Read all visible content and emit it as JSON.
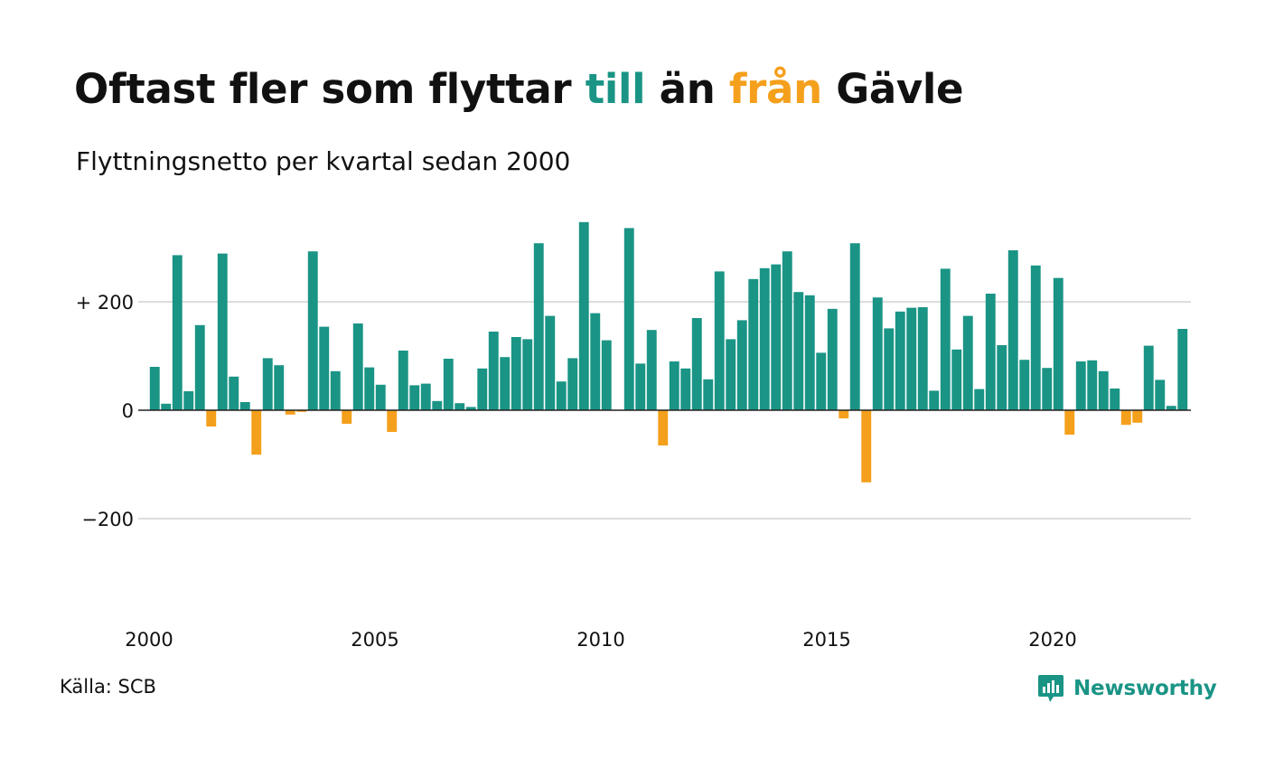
{
  "title": {
    "part1": "Oftast fler som flyttar ",
    "part2": "till",
    "part3": " än ",
    "part4": "från",
    "part5": " Gävle"
  },
  "subtitle": "Flyttningsnetto per kvartal sedan 2000",
  "source": "Källa: SCB",
  "brand": "Newsworthy",
  "colors": {
    "positive": "#1a9485",
    "negative": "#f4a01c",
    "title_till": "#1a9485",
    "title_fran": "#f4a01c",
    "grid": "#dddddd",
    "text": "#111111"
  },
  "chart_data": {
    "type": "bar",
    "title": "Oftast fler som flyttar till än från Gävle",
    "subtitle": "Flyttningsnetto per kvartal sedan 2000",
    "xlabel": "",
    "ylabel": "",
    "ylim": [
      -400,
      350
    ],
    "yticks": [
      {
        "value": 200,
        "label": "+ 200"
      },
      {
        "value": 0,
        "label": "0"
      },
      {
        "value": -200,
        "label": "−200"
      }
    ],
    "xticks": [
      {
        "value": 2000,
        "label": "2000"
      },
      {
        "value": 2005,
        "label": "2005"
      },
      {
        "value": 2010,
        "label": "2010"
      },
      {
        "value": 2015,
        "label": "2015"
      },
      {
        "value": 2020,
        "label": "2020"
      }
    ],
    "grid": true,
    "start_year": 2000,
    "values": [
      80,
      12,
      286,
      35,
      157,
      -30,
      289,
      62,
      15,
      -82,
      96,
      83,
      -8,
      -3,
      293,
      154,
      72,
      -25,
      160,
      79,
      47,
      -40,
      110,
      46,
      49,
      17,
      95,
      13,
      6,
      77,
      145,
      98,
      135,
      131,
      308,
      174,
      53,
      96,
      347,
      179,
      129,
      0,
      336,
      86,
      148,
      -65,
      90,
      77,
      170,
      57,
      256,
      131,
      166,
      242,
      262,
      269,
      293,
      218,
      212,
      106,
      187,
      -15,
      308,
      -133,
      208,
      151,
      182,
      189,
      190,
      36,
      261,
      112,
      174,
      39,
      215,
      120,
      295,
      93,
      267,
      78,
      244,
      -45,
      90,
      92,
      72,
      40,
      -27,
      -23,
      119,
      56,
      8,
      150
    ]
  }
}
